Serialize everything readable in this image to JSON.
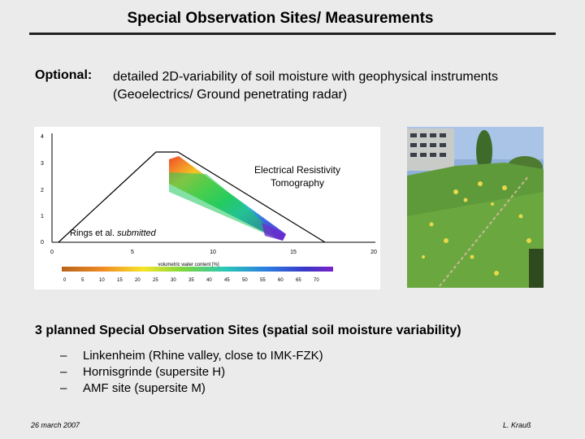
{
  "slide": {
    "title": "Special Observation Sites/ Measurements",
    "optional_label": "Optional:",
    "optional_line1": "detailed 2D-variability of soil moisture with geophysical instruments",
    "optional_line2": "(Geoelectrics/ Ground penetrating radar)",
    "planned_heading": "3 planned Special Observation Sites (spatial soil moisture variability)",
    "sites": [
      "Linkenheim (Rhine valley, close to IMK-FZK)",
      "Hornisgrinde (supersite H)",
      "AMF site (supersite M)"
    ],
    "footer_date": "26 march 2007",
    "footer_author": "L. Krauß"
  },
  "figure": {
    "ert_label_line1": "Electrical Resistivity",
    "ert_label_line2": "Tomography",
    "citation_prefix": "Rings et al. ",
    "citation_italic": "submitted",
    "y_ticks": [
      "4",
      "3",
      "2",
      "1",
      "0"
    ],
    "x_ticks": [
      "0",
      "5",
      "10",
      "15",
      "20"
    ],
    "colorbar_label": "volumetric water content [%]",
    "colorbar_ticks": [
      "0",
      "5",
      "10",
      "15",
      "20",
      "25",
      "30",
      "35",
      "40",
      "45",
      "50",
      "55",
      "60",
      "65",
      "70"
    ]
  }
}
